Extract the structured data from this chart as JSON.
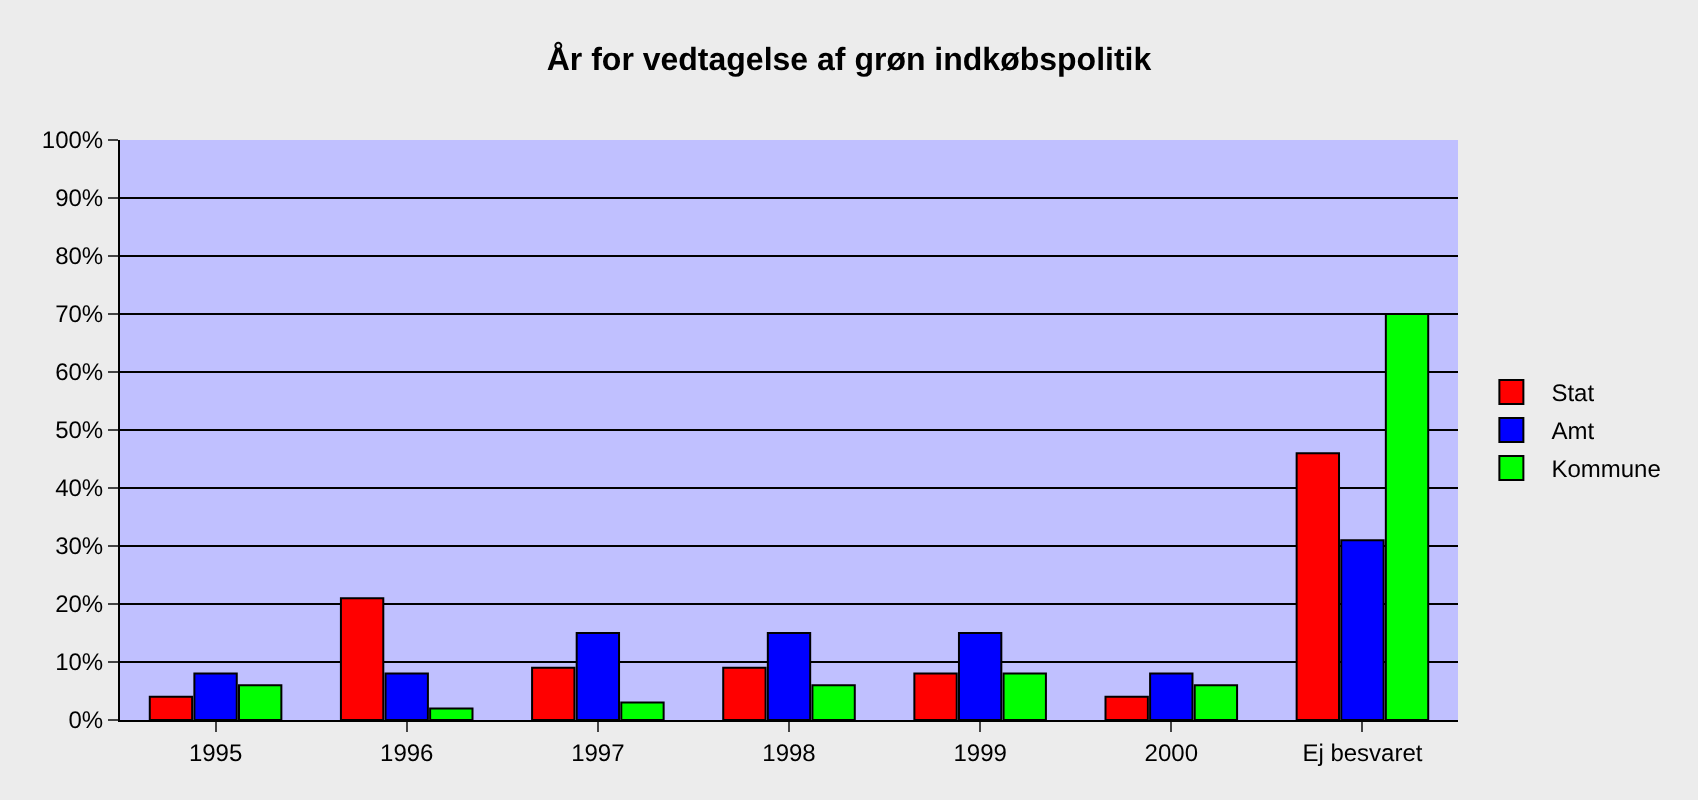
{
  "chart_data": {
    "type": "bar",
    "title": "År for vedtagelse af grøn indkøbspolitik",
    "categories": [
      "1995",
      "1996",
      "1997",
      "1998",
      "1999",
      "2000",
      "Ej besvaret"
    ],
    "series": [
      {
        "name": "Stat",
        "color": "#ff0000",
        "values": [
          4,
          21,
          9,
          9,
          8,
          4,
          46
        ]
      },
      {
        "name": "Amt",
        "color": "#0000ff",
        "values": [
          8,
          8,
          15,
          15,
          15,
          8,
          31
        ]
      },
      {
        "name": "Kommune",
        "color": "#00ff00",
        "values": [
          6,
          2,
          3,
          6,
          8,
          6,
          70
        ]
      }
    ],
    "ylim": [
      0,
      100
    ],
    "yticks": [
      {
        "value": 0,
        "label": "0%"
      },
      {
        "value": 10,
        "label": "10%"
      },
      {
        "value": 20,
        "label": "20%"
      },
      {
        "value": 30,
        "label": "30%"
      },
      {
        "value": 40,
        "label": "40%"
      },
      {
        "value": 50,
        "label": "50%"
      },
      {
        "value": 60,
        "label": "60%"
      },
      {
        "value": 70,
        "label": "70%"
      },
      {
        "value": 80,
        "label": "80%"
      },
      {
        "value": 90,
        "label": "90%"
      },
      {
        "value": 100,
        "label": "100%"
      }
    ],
    "grid": "y",
    "legend": "right"
  }
}
